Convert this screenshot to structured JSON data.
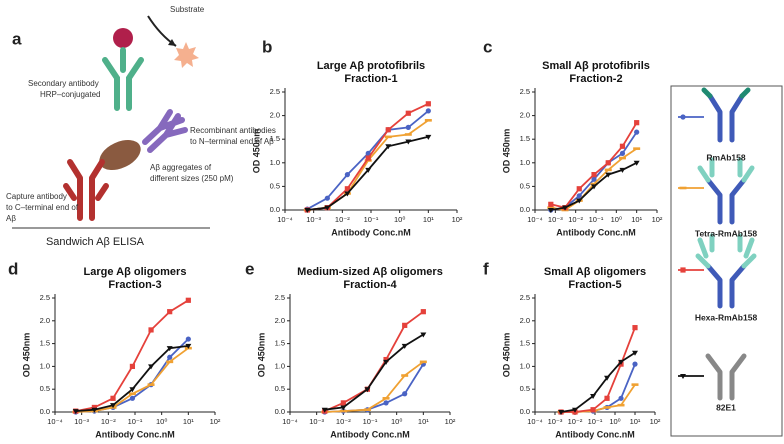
{
  "diagram": {
    "label": "a",
    "substrate": "Substrate",
    "secondary": [
      "Secondary antibody",
      "HRP–conjugated"
    ],
    "recombinant": [
      "Recombinant antibodies",
      "to N–terminal end of Aβ"
    ],
    "aggregates": [
      "Aβ aggregates of",
      "different sizes (250 pM)"
    ],
    "capture": [
      "Capture antibody",
      "to C–terminal end of",
      "Aβ"
    ],
    "assay": "Sandwich Aβ ELISA"
  },
  "chart_data": [
    {
      "type": "line",
      "panel": "b",
      "title": "Large Aβ protofibrils",
      "subtitle": "Fraction-1",
      "x_label": "Antibody Conc.nM",
      "y_label": "OD 450nm",
      "xscale": "log",
      "xlim": [
        0.0001,
        100
      ],
      "xticks": [
        {
          "value": 0.0001,
          "label": "10⁻⁴"
        },
        {
          "value": 0.001,
          "label": "10⁻³"
        },
        {
          "value": 0.01,
          "label": "10⁻²"
        },
        {
          "value": 0.1,
          "label": "10⁻¹"
        },
        {
          "value": 1,
          "label": "10⁰"
        },
        {
          "value": 10,
          "label": "10¹"
        },
        {
          "value": 100,
          "label": "10²"
        }
      ],
      "ylim": [
        0,
        2.5
      ],
      "yticks": [
        {
          "value": 0,
          "label": "0.0"
        },
        {
          "value": 0.5,
          "label": "0.5"
        },
        {
          "value": 1,
          "label": "1.0"
        },
        {
          "value": 1.5,
          "label": "1.5"
        },
        {
          "value": 2,
          "label": "2.0"
        },
        {
          "value": 2.5,
          "label": "2.5"
        }
      ],
      "x": [
        0.0006,
        0.003,
        0.015,
        0.08,
        0.4,
        2,
        10
      ],
      "series": [
        {
          "name": "RmAb158",
          "color": "#4a63c4",
          "marker": "circle",
          "values": [
            0.02,
            0.25,
            0.75,
            1.2,
            1.7,
            1.75,
            2.1
          ]
        },
        {
          "name": "Tetra-RmAb158",
          "color": "#f0a132",
          "marker": "dash",
          "values": [
            0,
            0.05,
            0.35,
            1.05,
            1.55,
            1.6,
            1.9
          ]
        },
        {
          "name": "Hexa-RmAb158",
          "color": "#e5413b",
          "marker": "square",
          "values": [
            0,
            0.05,
            0.45,
            1.1,
            1.7,
            2.05,
            2.25
          ]
        },
        {
          "name": "82E1",
          "color": "#111111",
          "marker": "triangle",
          "values": [
            0,
            0.05,
            0.35,
            0.85,
            1.35,
            1.45,
            1.55
          ]
        }
      ]
    },
    {
      "type": "line",
      "panel": "c",
      "title": "Small Aβ protofibrils",
      "subtitle": "Fraction-2",
      "x_label": "Antibody Conc.nM",
      "y_label": "OD 450nm",
      "xscale": "log",
      "xlim": [
        0.0001,
        100
      ],
      "xticks": [
        {
          "value": 0.0001,
          "label": "10⁻⁴"
        },
        {
          "value": 0.001,
          "label": "10⁻³"
        },
        {
          "value": 0.01,
          "label": "10⁻²"
        },
        {
          "value": 0.1,
          "label": "10⁻¹"
        },
        {
          "value": 1,
          "label": "10⁰"
        },
        {
          "value": 10,
          "label": "10¹"
        },
        {
          "value": 100,
          "label": "10²"
        }
      ],
      "ylim": [
        0,
        2.5
      ],
      "yticks": [
        {
          "value": 0,
          "label": "0.0"
        },
        {
          "value": 0.5,
          "label": "0.5"
        },
        {
          "value": 1,
          "label": "1.0"
        },
        {
          "value": 1.5,
          "label": "1.5"
        },
        {
          "value": 2,
          "label": "2.0"
        },
        {
          "value": 2.5,
          "label": "2.5"
        }
      ],
      "x": [
        0.0006,
        0.003,
        0.015,
        0.08,
        0.4,
        2,
        10
      ],
      "series": [
        {
          "color": "#4a63c4",
          "marker": "circle",
          "values": [
            0,
            0.05,
            0.3,
            0.65,
            1.0,
            1.2,
            1.65
          ]
        },
        {
          "color": "#f0a132",
          "marker": "dash",
          "values": [
            0.05,
            0,
            0.2,
            0.55,
            0.85,
            1.1,
            1.3
          ]
        },
        {
          "color": "#e5413b",
          "marker": "square",
          "values": [
            0.12,
            0.05,
            0.45,
            0.75,
            1.0,
            1.35,
            1.85
          ]
        },
        {
          "color": "#111111",
          "marker": "triangle",
          "values": [
            0,
            0.05,
            0.2,
            0.5,
            0.75,
            0.85,
            1.0
          ]
        }
      ]
    },
    {
      "type": "line",
      "panel": "d",
      "title": "Large Aβ oligomers",
      "subtitle": "Fraction-3",
      "x_label": "Antibody Conc.nM",
      "y_label": "OD 450nm",
      "xscale": "log",
      "xlim": [
        0.0001,
        100
      ],
      "xticks": [
        {
          "value": 0.0001,
          "label": "10⁻⁴"
        },
        {
          "value": 0.001,
          "label": "10⁻³"
        },
        {
          "value": 0.01,
          "label": "10⁻²"
        },
        {
          "value": 0.1,
          "label": "10⁻¹"
        },
        {
          "value": 1,
          "label": "10⁰"
        },
        {
          "value": 10,
          "label": "10¹"
        },
        {
          "value": 100,
          "label": "10²"
        }
      ],
      "ylim": [
        0,
        2.5
      ],
      "yticks": [
        {
          "value": 0,
          "label": "0.0"
        },
        {
          "value": 0.5,
          "label": "0.5"
        },
        {
          "value": 1,
          "label": "1.0"
        },
        {
          "value": 1.5,
          "label": "1.5"
        },
        {
          "value": 2,
          "label": "2.0"
        },
        {
          "value": 2.5,
          "label": "2.5"
        }
      ],
      "x": [
        0.0006,
        0.003,
        0.015,
        0.08,
        0.4,
        2,
        10
      ],
      "series": [
        {
          "color": "#4a63c4",
          "marker": "circle",
          "values": [
            0,
            0.02,
            0.1,
            0.3,
            0.6,
            1.2,
            1.6
          ]
        },
        {
          "color": "#f0a132",
          "marker": "dash",
          "values": [
            0,
            0.02,
            0.1,
            0.4,
            0.6,
            1.1,
            1.4
          ]
        },
        {
          "color": "#e5413b",
          "marker": "square",
          "values": [
            0.02,
            0.1,
            0.3,
            1.0,
            1.8,
            2.2,
            2.45
          ]
        },
        {
          "color": "#111111",
          "marker": "triangle",
          "values": [
            0.02,
            0.05,
            0.15,
            0.5,
            1.0,
            1.4,
            1.45
          ]
        }
      ]
    },
    {
      "type": "line",
      "panel": "e",
      "title": "Medium-sized Aβ oligomers",
      "subtitle": "Fraction-4",
      "x_label": "Antibody Conc.nM",
      "y_label": "OD 450nm",
      "xscale": "log",
      "xlim": [
        0.0001,
        100
      ],
      "xticks": [
        {
          "value": 0.0001,
          "label": "10⁻⁴"
        },
        {
          "value": 0.001,
          "label": "10⁻³"
        },
        {
          "value": 0.01,
          "label": "10⁻²"
        },
        {
          "value": 0.1,
          "label": "10⁻¹"
        },
        {
          "value": 1,
          "label": "10⁰"
        },
        {
          "value": 10,
          "label": "10¹"
        },
        {
          "value": 100,
          "label": "10²"
        }
      ],
      "ylim": [
        0,
        2.5
      ],
      "yticks": [
        {
          "value": 0,
          "label": "0.0"
        },
        {
          "value": 0.5,
          "label": "0.5"
        },
        {
          "value": 1,
          "label": "1.0"
        },
        {
          "value": 1.5,
          "label": "1.5"
        },
        {
          "value": 2,
          "label": "2.0"
        },
        {
          "value": 2.5,
          "label": "2.5"
        }
      ],
      "x": [
        0.002,
        0.01,
        0.08,
        0.4,
        2,
        10
      ],
      "series": [
        {
          "color": "#4a63c4",
          "marker": "circle",
          "values": [
            0,
            0.02,
            0.05,
            0.2,
            0.4,
            1.05
          ]
        },
        {
          "color": "#f0a132",
          "marker": "dash",
          "values": [
            0,
            0.02,
            0.05,
            0.3,
            0.8,
            1.1
          ]
        },
        {
          "color": "#e5413b",
          "marker": "square",
          "values": [
            0.02,
            0.2,
            0.5,
            1.15,
            1.9,
            2.2
          ]
        },
        {
          "color": "#111111",
          "marker": "triangle",
          "values": [
            0.05,
            0.1,
            0.5,
            1.1,
            1.45,
            1.7
          ]
        }
      ]
    },
    {
      "type": "line",
      "panel": "f",
      "title": "Small Aβ oligomers",
      "subtitle": "Fraction-5",
      "x_label": "Antibody Conc.nM",
      "y_label": "OD 450nm",
      "xscale": "log",
      "xlim": [
        0.0001,
        100
      ],
      "xticks": [
        {
          "value": 0.0001,
          "label": "10⁻⁴"
        },
        {
          "value": 0.001,
          "label": "10⁻³"
        },
        {
          "value": 0.01,
          "label": "10⁻²"
        },
        {
          "value": 0.1,
          "label": "10⁻¹"
        },
        {
          "value": 1,
          "label": "10⁰"
        },
        {
          "value": 10,
          "label": "10¹"
        },
        {
          "value": 100,
          "label": "10²"
        }
      ],
      "ylim": [
        0,
        2.5
      ],
      "yticks": [
        {
          "value": 0,
          "label": "0.0"
        },
        {
          "value": 0.5,
          "label": "0.5"
        },
        {
          "value": 1,
          "label": "1.0"
        },
        {
          "value": 1.5,
          "label": "1.5"
        },
        {
          "value": 2,
          "label": "2.0"
        },
        {
          "value": 2.5,
          "label": "2.5"
        }
      ],
      "x": [
        0.002,
        0.01,
        0.08,
        0.4,
        2,
        10
      ],
      "series": [
        {
          "color": "#4a63c4",
          "marker": "circle",
          "values": [
            0,
            0,
            0.02,
            0.1,
            0.3,
            1.05
          ]
        },
        {
          "color": "#f0a132",
          "marker": "dash",
          "values": [
            0,
            0,
            0.02,
            0.1,
            0.15,
            0.6
          ]
        },
        {
          "color": "#e5413b",
          "marker": "square",
          "values": [
            0,
            0,
            0.05,
            0.3,
            1.05,
            1.85
          ]
        },
        {
          "color": "#111111",
          "marker": "triangle",
          "values": [
            0,
            0.05,
            0.35,
            0.75,
            1.1,
            1.3
          ]
        }
      ]
    }
  ]
}
